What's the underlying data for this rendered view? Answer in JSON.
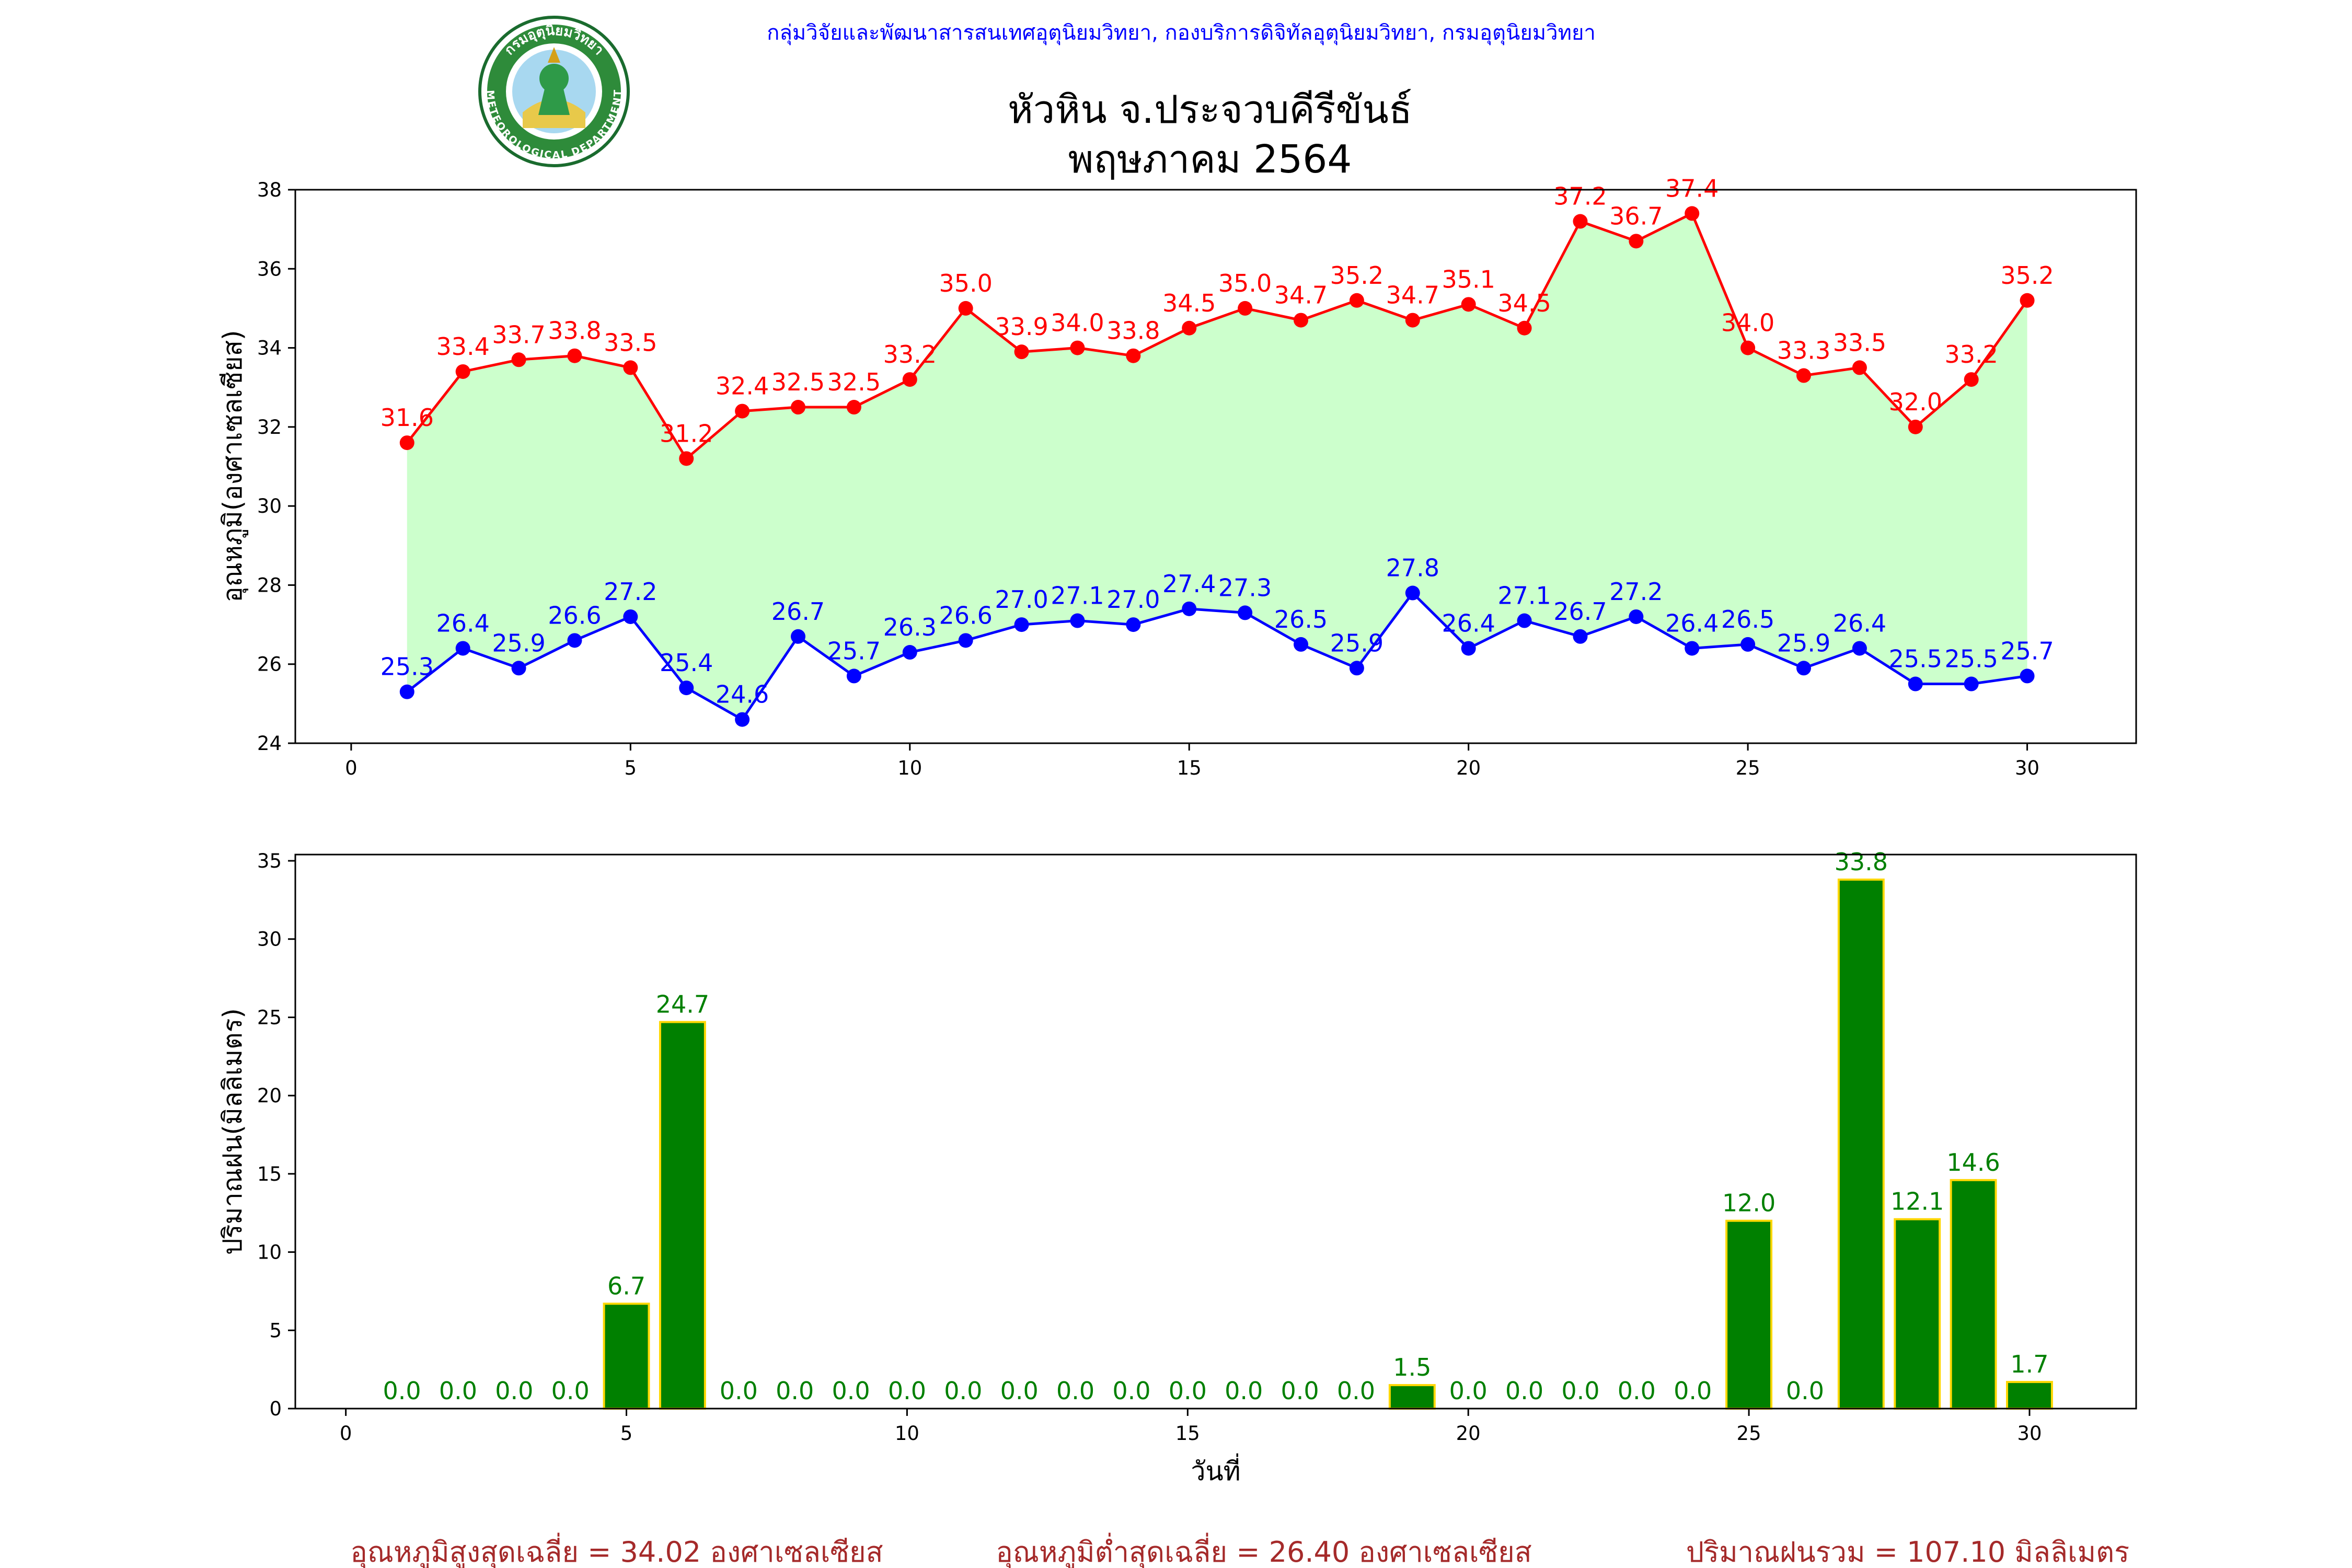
{
  "header": {
    "org_line": "กลุ่มวิจัยและพัฒนาสารสนเทศอุตุนิยมวิทยา, กองบริการดิจิทัลอุตุนิยมวิทยา, กรมอุตุนิยมวิทยา",
    "title_line1": "หัวหิน จ.ประจวบคีรีขันธ์",
    "title_line2": "พฤษภาคม 2564",
    "logo_text_top": "กรมอุตุนิยมวิทยา",
    "logo_text_bottom": "METEOROLOGICAL DEPARTMENT"
  },
  "colors": {
    "max_line": "#ff0000",
    "min_line": "#0000ff",
    "band_fill": "#ccffcc",
    "bar_fill": "#008000",
    "bar_edge": "#ffd700",
    "bar_label": "#008000",
    "footer": "#a52a2a",
    "header": "#0000ff"
  },
  "chart_data": [
    {
      "type": "line",
      "ylabel": "อุณหภูมิ(องศาเซลเซียส)",
      "xlabel": "",
      "xlim": [
        -1,
        31.95
      ],
      "ylim": [
        24,
        38
      ],
      "xticks": [
        0,
        5,
        10,
        15,
        20,
        25,
        30
      ],
      "yticks": [
        24,
        26,
        28,
        30,
        32,
        34,
        36,
        38
      ],
      "x": [
        1,
        2,
        3,
        4,
        5,
        6,
        7,
        8,
        9,
        10,
        11,
        12,
        13,
        14,
        15,
        16,
        17,
        18,
        19,
        20,
        21,
        22,
        23,
        24,
        25,
        26,
        27,
        28,
        29,
        30
      ],
      "series": [
        {
          "values": [
            31.6,
            33.4,
            33.7,
            33.8,
            33.5,
            31.2,
            32.4,
            32.5,
            32.5,
            33.2,
            35.0,
            33.9,
            34.0,
            33.8,
            34.5,
            35.0,
            34.7,
            35.2,
            34.7,
            35.1,
            34.5,
            37.2,
            36.7,
            37.4,
            34.0,
            33.3,
            33.5,
            32.0,
            33.2,
            35.2
          ],
          "labels": [
            "31.6",
            "33.4",
            "33.7",
            "33.8",
            "33.5",
            "31.2",
            "32.4",
            "32.5",
            "32.5",
            "33.2",
            "35.0",
            "33.9",
            "34.0",
            "33.8",
            "34.5",
            "35.0",
            "34.7",
            "35.2",
            "34.7",
            "35.1",
            "34.5",
            "37.2",
            "36.7",
            "37.4",
            "34.0",
            "33.3",
            "33.5",
            "32.0",
            "33.2",
            "35.2"
          ],
          "color": "#ff0000"
        },
        {
          "values": [
            25.3,
            26.4,
            25.9,
            26.6,
            27.2,
            25.4,
            24.6,
            26.7,
            25.7,
            26.3,
            26.6,
            27.0,
            27.1,
            27.0,
            27.4,
            27.3,
            26.5,
            25.9,
            27.8,
            26.4,
            27.1,
            26.7,
            27.2,
            26.4,
            26.5,
            25.9,
            26.4,
            25.5,
            25.5,
            25.7
          ],
          "labels": [
            "25.3",
            "26.4",
            "25.9",
            "26.6",
            "27.2",
            "25.4",
            "24.6",
            "26.7",
            "25.7",
            "26.3",
            "26.6",
            "27.0",
            "27.1",
            "27.0",
            "27.4",
            "27.3",
            "26.5",
            "25.9",
            "27.8",
            "26.4",
            "27.1",
            "26.7",
            "27.2",
            "26.4",
            "26.5",
            "25.9",
            "26.4",
            "25.5",
            "25.5",
            "25.7"
          ],
          "color": "#0000ff"
        }
      ],
      "fill_between": true
    },
    {
      "type": "bar",
      "ylabel": "ปริมาณฝน(มิลลิเมตร)",
      "xlabel": "วันที่",
      "xlim": [
        -0.9,
        31.9
      ],
      "ylim": [
        0,
        35.4
      ],
      "xticks": [
        0,
        5,
        10,
        15,
        20,
        25,
        30
      ],
      "yticks": [
        0,
        5,
        10,
        15,
        20,
        25,
        30,
        35
      ],
      "x": [
        1,
        2,
        3,
        4,
        5,
        6,
        7,
        8,
        9,
        10,
        11,
        12,
        13,
        14,
        15,
        16,
        17,
        18,
        19,
        20,
        21,
        22,
        23,
        24,
        25,
        26,
        27,
        28,
        29,
        30
      ],
      "values": [
        0.0,
        0.0,
        0.0,
        0.0,
        6.7,
        24.7,
        0.0,
        0.0,
        0.0,
        0.0,
        0.0,
        0.0,
        0.0,
        0.0,
        0.0,
        0.0,
        0.0,
        0.0,
        1.5,
        0.0,
        0.0,
        0.0,
        0.0,
        0.0,
        12.0,
        0.0,
        33.8,
        12.1,
        14.6,
        1.7
      ],
      "labels": [
        "0.0",
        "0.0",
        "0.0",
        "0.0",
        "6.7",
        "24.7",
        "0.0",
        "0.0",
        "0.0",
        "0.0",
        "0.0",
        "0.0",
        "0.0",
        "0.0",
        "0.0",
        "0.0",
        "0.0",
        "0.0",
        "1.5",
        "0.0",
        "0.0",
        "0.0",
        "0.0",
        "0.0",
        "12.0",
        "0.0",
        "33.8",
        "12.1",
        "14.6",
        "1.7"
      ]
    }
  ],
  "footer": {
    "avg_max": "อุณหภูมิสูงสุดเฉลี่ย = 34.02 องศาเซลเซียส",
    "avg_min": "อุณหภูมิต่ำสุดเฉลี่ย = 26.40 องศาเซลเซียส",
    "total_rain": "ปริมาณฝนรวม = 107.10 มิลลิเมตร"
  }
}
